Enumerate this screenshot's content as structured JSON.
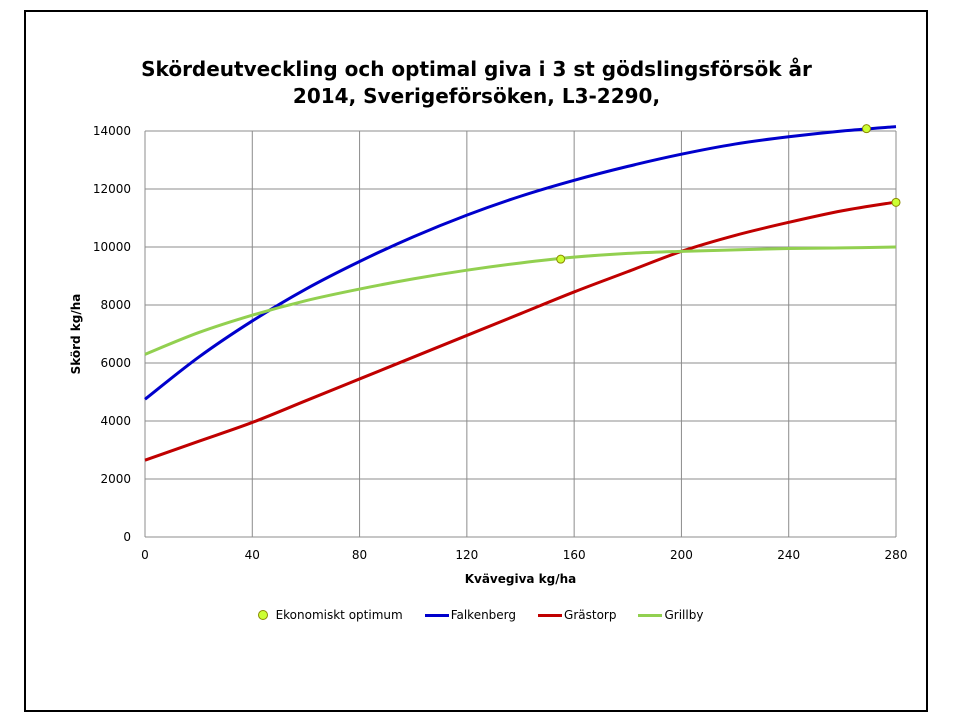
{
  "chart_data": {
    "type": "line",
    "title_line1": "Skördeutveckling och optimal giva i 3 st gödslingsförsök år",
    "title_line2": "2014, Sverigeförsöken, L3-2290,",
    "xlabel": "Kvävegiva kg/ha",
    "ylabel": "Skörd kg/ha",
    "xlim": [
      0,
      280
    ],
    "ylim": [
      0,
      14000
    ],
    "x_ticks": [
      0,
      40,
      80,
      120,
      160,
      200,
      240,
      280
    ],
    "y_ticks": [
      0,
      2000,
      4000,
      6000,
      8000,
      10000,
      12000,
      14000
    ],
    "grid": true,
    "legend_position": "bottom",
    "x": [
      0,
      20,
      40,
      60,
      80,
      100,
      120,
      140,
      160,
      180,
      200,
      220,
      240,
      260,
      280
    ],
    "series": [
      {
        "name": "Falkenberg",
        "color": "#0000cc",
        "values": [
          4750,
          6200,
          7450,
          8550,
          9500,
          10350,
          11100,
          11750,
          12300,
          12780,
          13200,
          13550,
          13800,
          14000,
          14150
        ]
      },
      {
        "name": "Grästorp",
        "color": "#c00000",
        "values": [
          2650,
          3300,
          3950,
          4700,
          5450,
          6200,
          6950,
          7700,
          8450,
          9150,
          9850,
          10400,
          10850,
          11250,
          11550
        ]
      },
      {
        "name": "Grillby",
        "color": "#92d050",
        "values": [
          6300,
          7050,
          7650,
          8150,
          8550,
          8900,
          9200,
          9450,
          9650,
          9780,
          9850,
          9900,
          9950,
          9970,
          10000
        ]
      }
    ],
    "optimum": {
      "name": "Ekonomiskt optimum",
      "fill": "#ccff33",
      "stroke": "#8a8a00",
      "points": [
        {
          "x": 155,
          "y": 9580
        },
        {
          "x": 269,
          "y": 14080
        },
        {
          "x": 280,
          "y": 11540
        }
      ]
    }
  }
}
